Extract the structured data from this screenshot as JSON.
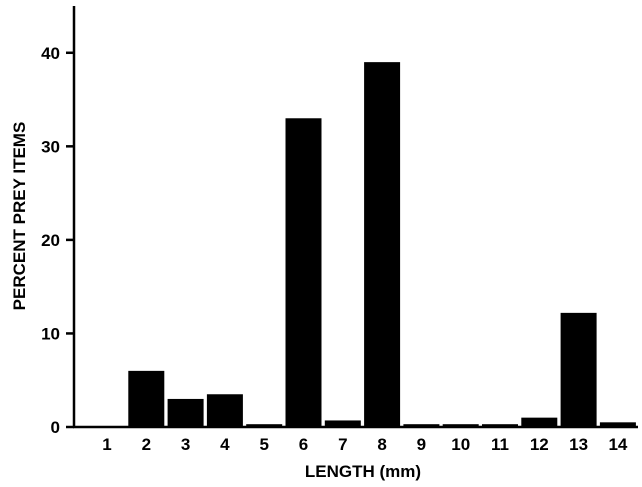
{
  "chart_data": {
    "type": "bar",
    "title": "",
    "xlabel": "LENGTH (mm)",
    "ylabel": "PERCENT PREY ITEMS",
    "categories": [
      "1",
      "2",
      "3",
      "4",
      "5",
      "6",
      "7",
      "8",
      "9",
      "10",
      "11",
      "12",
      "13",
      "14"
    ],
    "values": [
      0.1,
      6,
      3,
      3.5,
      0.3,
      33,
      0.7,
      39,
      0.3,
      0.3,
      0.3,
      1,
      12.2,
      0.5
    ],
    "yticks": [
      "0",
      "10",
      "20",
      "30",
      "40"
    ],
    "ylim": [
      0,
      45
    ],
    "grid": false,
    "colors": {
      "bar": "#000000",
      "axis": "#000000",
      "background": "#ffffff"
    }
  }
}
